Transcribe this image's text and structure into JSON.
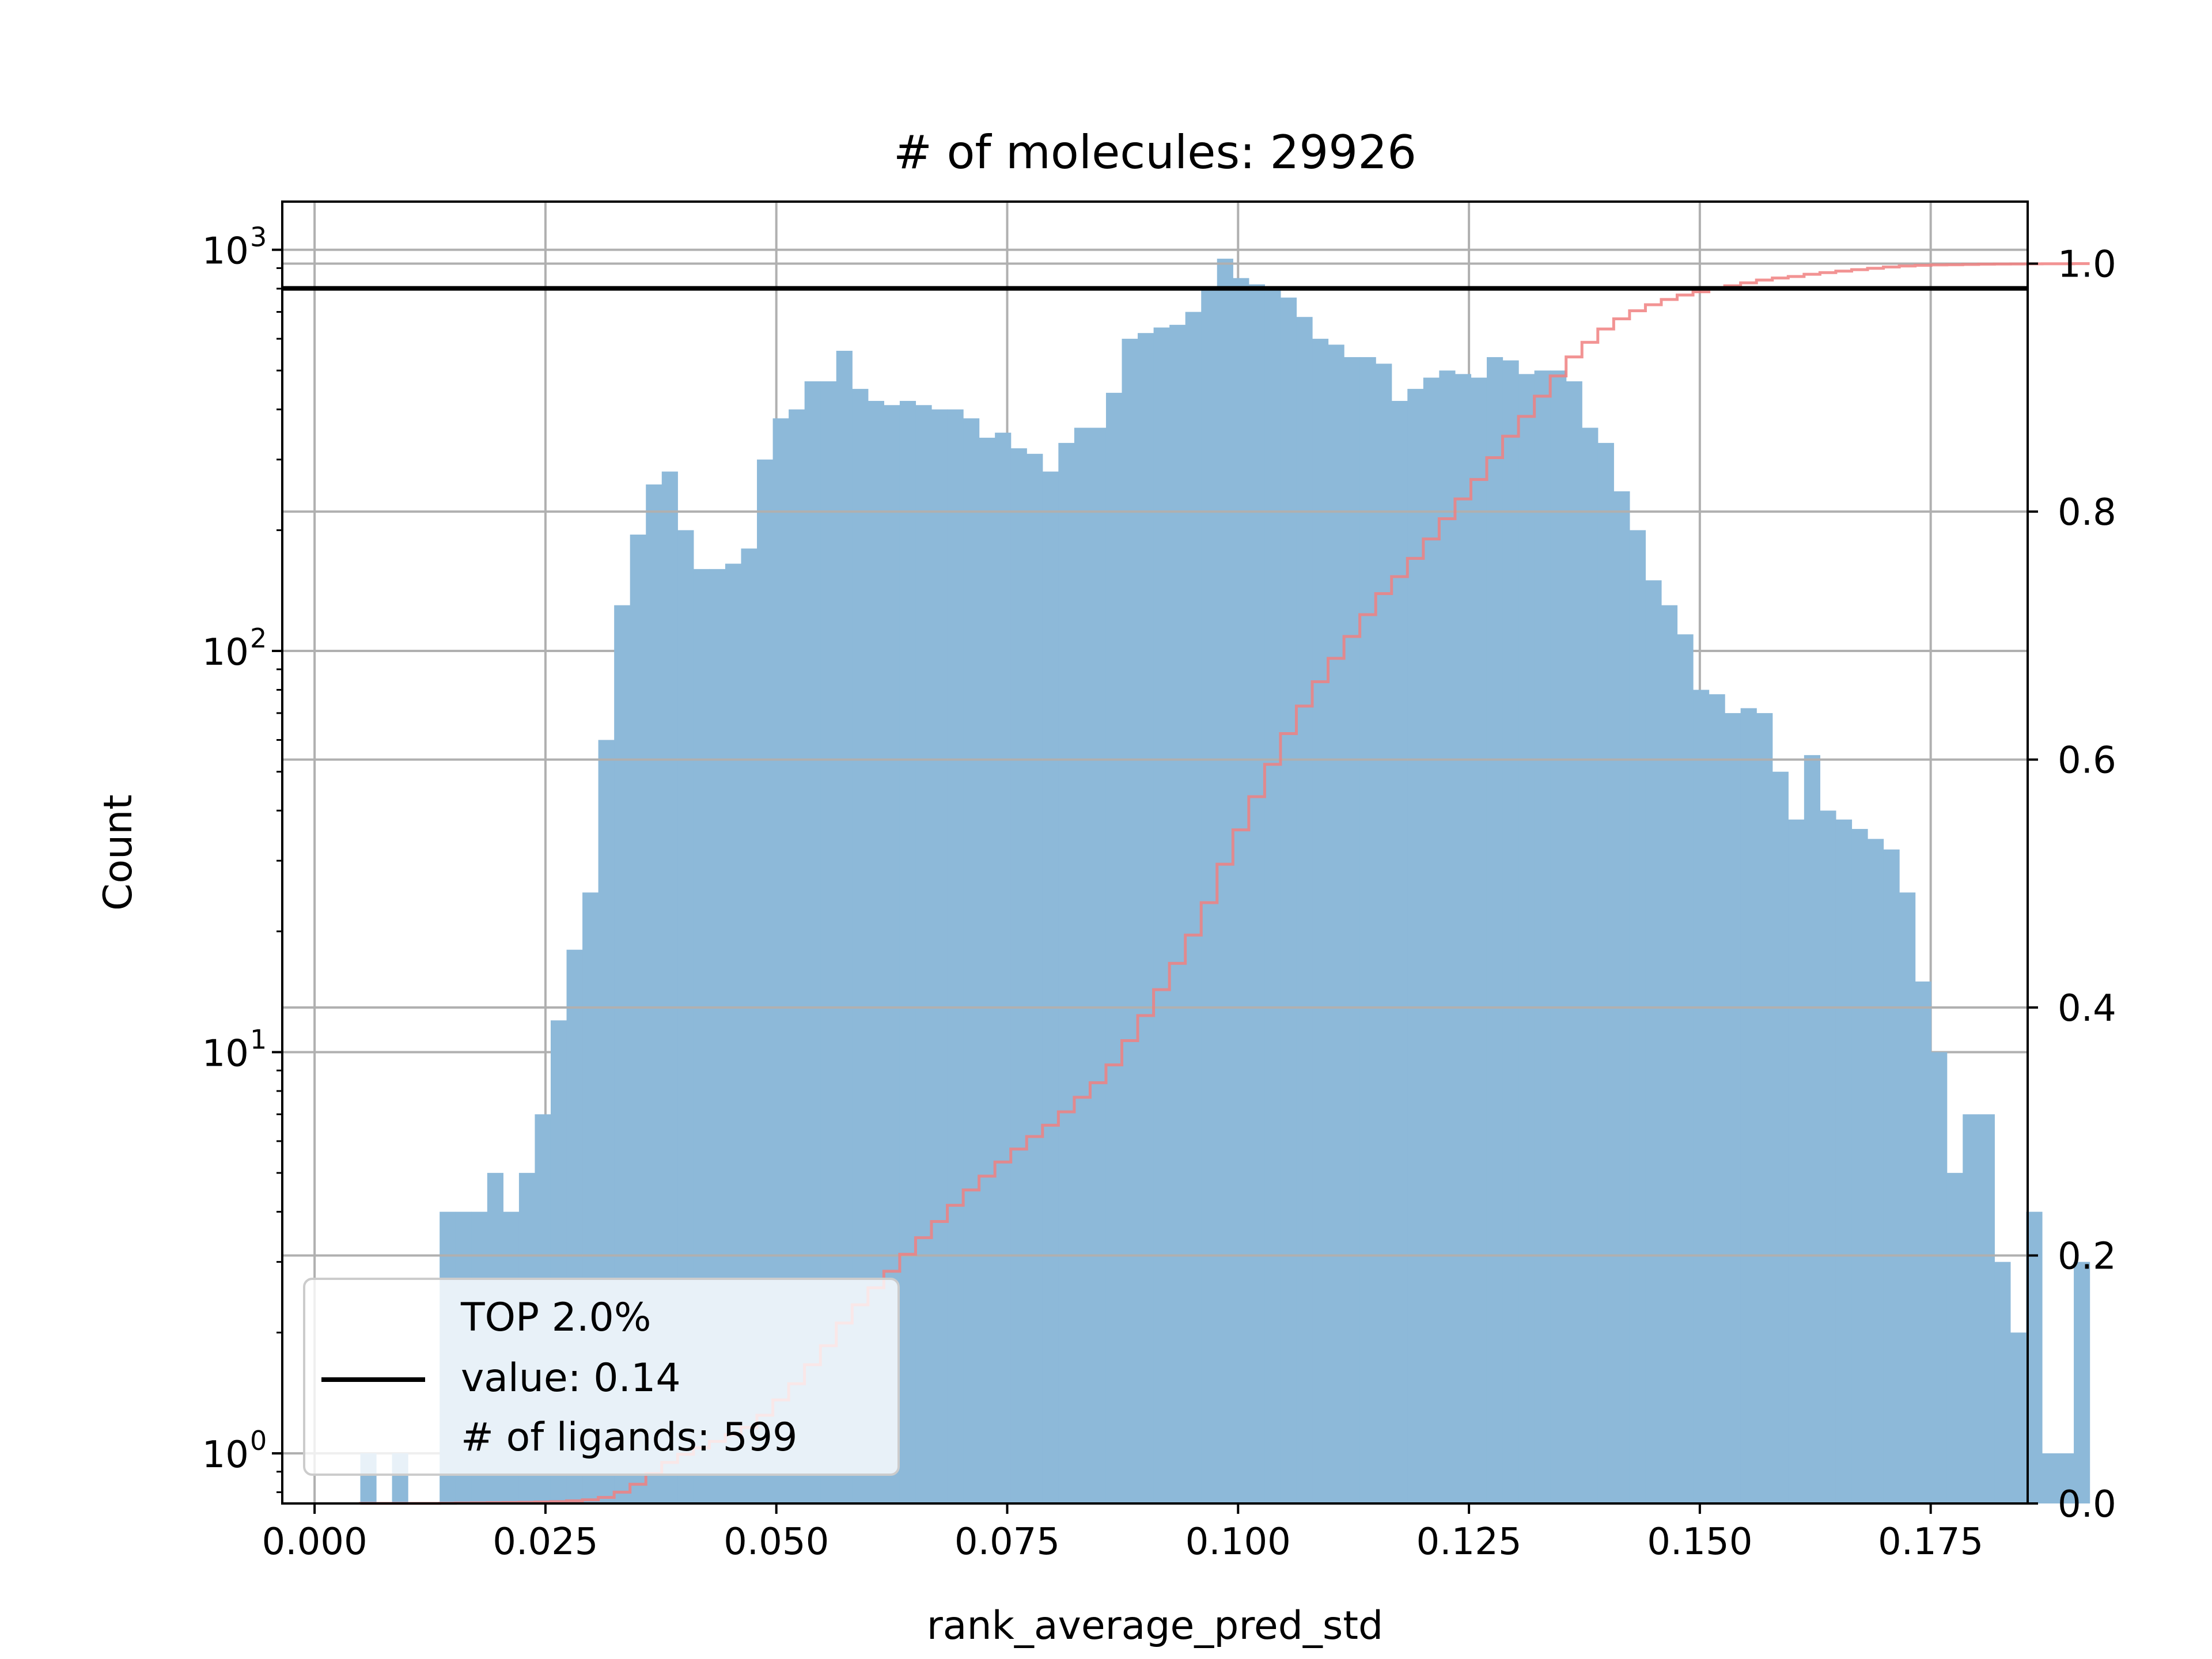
{
  "chart_data": {
    "type": "bar",
    "title": "# of molecules: 29926",
    "xlabel": "rank_average_pred_std",
    "ylabel": "Count",
    "xlim": [
      -0.0035,
      0.1855
    ],
    "yscale": "log",
    "ylim_log10": [
      -0.125,
      3.12
    ],
    "y2lim": [
      0,
      1.05
    ],
    "grid": true,
    "x_ticks": [
      "0.000",
      "0.025",
      "0.050",
      "0.075",
      "0.100",
      "0.125",
      "0.150",
      "0.175"
    ],
    "x_tick_values": [
      0,
      0.025,
      0.05,
      0.075,
      0.1,
      0.125,
      0.15,
      0.175
    ],
    "y_ticks": [
      {
        "base": "10",
        "exp": "0",
        "value": 1
      },
      {
        "base": "10",
        "exp": "1",
        "value": 10
      },
      {
        "base": "10",
        "exp": "2",
        "value": 100
      },
      {
        "base": "10",
        "exp": "3",
        "value": 1000
      }
    ],
    "y2_ticks": [
      "0.0",
      "0.2",
      "0.4",
      "0.6",
      "0.8",
      "1.0"
    ],
    "y2_tick_values": [
      0,
      0.2,
      0.4,
      0.6,
      0.8,
      1.0
    ],
    "bins_start": 0.00495,
    "bin_width": 0.001718,
    "counts": [
      1,
      0,
      1,
      0,
      0,
      4,
      4,
      4,
      5,
      4,
      5,
      7,
      12,
      18,
      25,
      60,
      130,
      195,
      260,
      280,
      200,
      160,
      160,
      165,
      180,
      300,
      380,
      400,
      470,
      470,
      560,
      450,
      420,
      410,
      420,
      410,
      400,
      400,
      380,
      340,
      350,
      320,
      310,
      280,
      330,
      360,
      360,
      440,
      600,
      620,
      640,
      650,
      700,
      800,
      950,
      850,
      820,
      800,
      760,
      680,
      600,
      580,
      540,
      540,
      520,
      420,
      450,
      480,
      500,
      490,
      480,
      540,
      530,
      490,
      500,
      500,
      470,
      360,
      330,
      250,
      200,
      150,
      130,
      110,
      80,
      78,
      70,
      72,
      70,
      50,
      38,
      55,
      40,
      38,
      36,
      34,
      32,
      25,
      15,
      10,
      5,
      7,
      7,
      3,
      2,
      4,
      1,
      1,
      3
    ],
    "series": [
      {
        "name": "",
        "kind": "histogram",
        "color": "#8db9d9"
      },
      {
        "name": "",
        "kind": "cumulative",
        "color": "#f08080"
      }
    ],
    "threshold": {
      "y2": 0.98,
      "color": "#000000"
    },
    "legend": {
      "placement": "lower-left",
      "lines": [
        "TOP 2.0%",
        "value: 0.14",
        "# of ligands: 599"
      ]
    }
  }
}
